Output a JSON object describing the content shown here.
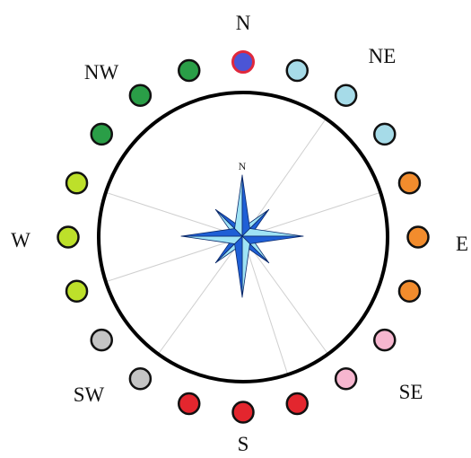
{
  "compass": {
    "labels": [
      "N",
      "NE",
      "E",
      "SE",
      "S",
      "SW",
      "W",
      "NW"
    ],
    "inner_label": "N",
    "ring_color": "#000000",
    "spoke_color": "#cfcfcf"
  },
  "markers": [
    {
      "angle": 0,
      "color": "#4b55d6",
      "stroke": "#e0283c"
    },
    {
      "angle": 18,
      "color": "#a6dbe8",
      "stroke": "#111111"
    },
    {
      "angle": 36,
      "color": "#a6dbe8",
      "stroke": "#111111"
    },
    {
      "angle": 54,
      "color": "#a6dbe8",
      "stroke": "#111111"
    },
    {
      "angle": 72,
      "color": "#f28c2d",
      "stroke": "#111111"
    },
    {
      "angle": 90,
      "color": "#f28c2d",
      "stroke": "#111111"
    },
    {
      "angle": 108,
      "color": "#f28c2d",
      "stroke": "#111111"
    },
    {
      "angle": 126,
      "color": "#f6b6cf",
      "stroke": "#111111"
    },
    {
      "angle": 144,
      "color": "#f6b6cf",
      "stroke": "#111111"
    },
    {
      "angle": 162,
      "color": "#e3262e",
      "stroke": "#111111"
    },
    {
      "angle": 180,
      "color": "#e3262e",
      "stroke": "#111111"
    },
    {
      "angle": 198,
      "color": "#e3262e",
      "stroke": "#111111"
    },
    {
      "angle": 216,
      "color": "#c4c4c4",
      "stroke": "#111111"
    },
    {
      "angle": 234,
      "color": "#c4c4c4",
      "stroke": "#111111"
    },
    {
      "angle": 252,
      "color": "#bde02a",
      "stroke": "#111111"
    },
    {
      "angle": 270,
      "color": "#bde02a",
      "stroke": "#111111"
    },
    {
      "angle": 288,
      "color": "#bde02a",
      "stroke": "#111111"
    },
    {
      "angle": 306,
      "color": "#2a9e47",
      "stroke": "#111111"
    },
    {
      "angle": 324,
      "color": "#2a9e47",
      "stroke": "#111111"
    },
    {
      "angle": 342,
      "color": "#2a9e47",
      "stroke": "#111111"
    }
  ],
  "rose_colors": {
    "dark": "#1f5fd6",
    "light": "#9fe3f5",
    "outline": "#0b2a6b"
  }
}
